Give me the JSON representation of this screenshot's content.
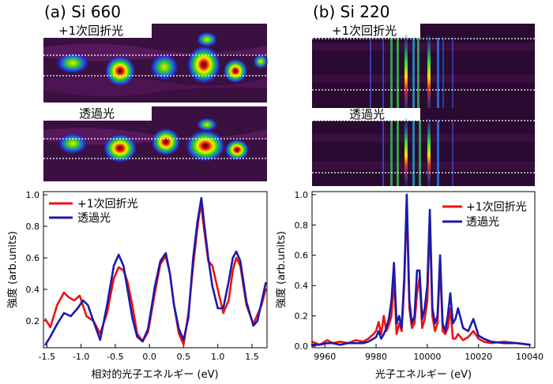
{
  "panels": {
    "a_title": "(a) Si 660",
    "b_title": "(b) Si 220",
    "diffracted_label": "+1次回折光",
    "transmitted_label": "透過光"
  },
  "chart_data": [
    {
      "type": "line",
      "xlabel": "相対的光子エネルギー (eV)",
      "ylabel": "強度 (arb.units)",
      "xlim": [
        -1.55,
        1.72
      ],
      "ylim": [
        0.03,
        1.02
      ],
      "xticks": [
        -1.5,
        -1.0,
        -0.5,
        0.0,
        0.5,
        1.0,
        1.5
      ],
      "xtick_labels": [
        "-1.5",
        "-1.0",
        "-0.5",
        "0.0",
        "0.5",
        "1.0",
        "1.5"
      ],
      "yticks": [
        0.2,
        0.4,
        0.6,
        0.8,
        1.0
      ],
      "ytick_labels": [
        "0.2",
        "0.4",
        "0.6",
        "0.8",
        "1.0"
      ],
      "legend_position": "top-left",
      "series": [
        {
          "name": "+1次回折光",
          "color": "#ee1111",
          "x": [
            -1.52,
            -1.45,
            -1.35,
            -1.25,
            -1.18,
            -1.1,
            -1.02,
            -0.92,
            -0.82,
            -0.72,
            -0.62,
            -0.52,
            -0.45,
            -0.38,
            -0.32,
            -0.25,
            -0.18,
            -0.1,
            -0.02,
            0.08,
            0.16,
            0.24,
            0.3,
            0.36,
            0.43,
            0.5,
            0.57,
            0.64,
            0.7,
            0.75,
            0.8,
            0.86,
            0.92,
            1.0,
            1.08,
            1.16,
            1.22,
            1.27,
            1.33,
            1.42,
            1.52,
            1.58,
            1.64,
            1.7
          ],
          "y": [
            0.21,
            0.16,
            0.3,
            0.38,
            0.35,
            0.33,
            0.36,
            0.23,
            0.2,
            0.12,
            0.25,
            0.47,
            0.54,
            0.52,
            0.45,
            0.3,
            0.12,
            0.07,
            0.13,
            0.38,
            0.56,
            0.61,
            0.5,
            0.3,
            0.12,
            0.05,
            0.25,
            0.55,
            0.78,
            0.95,
            0.78,
            0.58,
            0.55,
            0.4,
            0.25,
            0.33,
            0.52,
            0.6,
            0.55,
            0.3,
            0.18,
            0.24,
            0.3,
            0.4
          ]
        },
        {
          "name": "透過光",
          "color": "#1a1aaa",
          "x": [
            -1.52,
            -1.45,
            -1.35,
            -1.25,
            -1.15,
            -1.05,
            -0.97,
            -0.9,
            -0.82,
            -0.72,
            -0.62,
            -0.52,
            -0.45,
            -0.38,
            -0.32,
            -0.25,
            -0.18,
            -0.1,
            -0.02,
            0.08,
            0.16,
            0.24,
            0.3,
            0.36,
            0.43,
            0.5,
            0.57,
            0.64,
            0.7,
            0.76,
            0.8,
            0.86,
            0.92,
            1.0,
            1.08,
            1.16,
            1.22,
            1.27,
            1.33,
            1.42,
            1.52,
            1.58,
            1.64,
            1.7
          ],
          "y": [
            0.05,
            0.1,
            0.18,
            0.25,
            0.23,
            0.28,
            0.33,
            0.3,
            0.2,
            0.08,
            0.3,
            0.55,
            0.62,
            0.55,
            0.4,
            0.22,
            0.1,
            0.07,
            0.15,
            0.42,
            0.58,
            0.63,
            0.5,
            0.3,
            0.15,
            0.08,
            0.22,
            0.6,
            0.82,
            0.98,
            0.82,
            0.6,
            0.42,
            0.28,
            0.28,
            0.45,
            0.6,
            0.64,
            0.58,
            0.32,
            0.17,
            0.2,
            0.32,
            0.44
          ]
        }
      ]
    },
    {
      "type": "line",
      "xlabel": "光子エネルギー (eV)",
      "ylabel": "強度 (arb.units)",
      "xlim": [
        9955,
        10042
      ],
      "ylim": [
        -0.01,
        1.02
      ],
      "xticks": [
        9960,
        9980,
        10000,
        10020,
        10040
      ],
      "xtick_labels": [
        "9960",
        "9980",
        "10000",
        "10020",
        "10040"
      ],
      "yticks": [
        0.0,
        0.2,
        0.4,
        0.6,
        0.8,
        1.0
      ],
      "ytick_labels": [
        "0.0",
        "0.2",
        "0.4",
        "0.6",
        "0.8",
        "1.0"
      ],
      "legend_position": "top-right",
      "series": [
        {
          "name": "+1次回折光",
          "color": "#ee1111",
          "x": [
            9955,
            9958,
            9961,
            9963,
            9966,
            9969,
            9972,
            9975,
            9977,
            9979,
            9980,
            9981,
            9982,
            9983,
            9984,
            9985,
            9986,
            9987,
            9988,
            9989,
            9990,
            9991,
            9992,
            9993,
            9994,
            9995,
            9996,
            9997,
            9998,
            9999,
            10000,
            10001,
            10002,
            10003,
            10004,
            10005,
            10006,
            10007,
            10008,
            10009,
            10010,
            10011,
            10012,
            10014,
            10016,
            10018,
            10020,
            10022,
            10025,
            10030,
            10035,
            10040
          ],
          "y": [
            0.03,
            0.01,
            0.04,
            0.02,
            0.03,
            0.02,
            0.04,
            0.03,
            0.05,
            0.08,
            0.1,
            0.16,
            0.08,
            0.2,
            0.1,
            0.14,
            0.2,
            0.45,
            0.08,
            0.15,
            0.1,
            0.4,
            0.95,
            0.25,
            0.12,
            0.15,
            0.35,
            0.45,
            0.12,
            0.18,
            0.3,
            0.85,
            0.2,
            0.1,
            0.15,
            0.55,
            0.1,
            0.08,
            0.12,
            0.25,
            0.05,
            0.05,
            0.08,
            0.04,
            0.06,
            0.1,
            0.05,
            0.03,
            0.02,
            0.03,
            0.02,
            0.01
          ]
        },
        {
          "name": "透過光",
          "color": "#1a1aaa",
          "x": [
            9955,
            9958,
            9961,
            9963,
            9966,
            9969,
            9972,
            9975,
            9977,
            9979,
            9980,
            9981,
            9982,
            9983,
            9984,
            9985,
            9986,
            9987,
            9988,
            9989,
            9990,
            9991,
            9992,
            9993,
            9994,
            9995,
            9996,
            9997,
            9998,
            9999,
            10000,
            10001,
            10002,
            10003,
            10004,
            10005,
            10006,
            10007,
            10008,
            10009,
            10010,
            10011,
            10012,
            10014,
            10016,
            10018,
            10020,
            10022,
            10025,
            10030,
            10035,
            10040
          ],
          "y": [
            0.01,
            0.01,
            0.02,
            0.02,
            0.01,
            0.02,
            0.02,
            0.02,
            0.03,
            0.05,
            0.06,
            0.1,
            0.05,
            0.08,
            0.12,
            0.18,
            0.3,
            0.55,
            0.15,
            0.2,
            0.12,
            0.45,
            1.0,
            0.3,
            0.15,
            0.2,
            0.5,
            0.5,
            0.18,
            0.25,
            0.4,
            0.9,
            0.25,
            0.15,
            0.2,
            0.6,
            0.15,
            0.1,
            0.2,
            0.35,
            0.15,
            0.18,
            0.25,
            0.12,
            0.1,
            0.18,
            0.07,
            0.05,
            0.03,
            0.02,
            0.02,
            0.01
          ]
        }
      ]
    }
  ]
}
